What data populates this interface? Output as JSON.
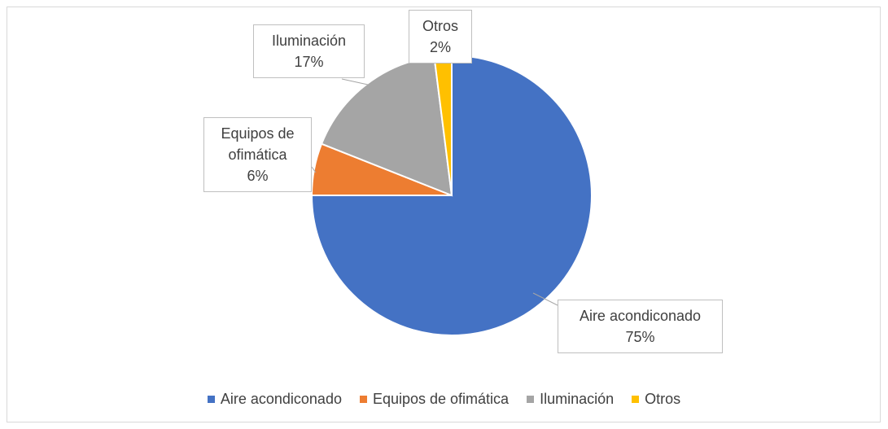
{
  "chart_data": {
    "type": "pie",
    "categories": [
      "Aire acondiconado",
      "Equipos de ofimática",
      "Iluminación",
      "Otros"
    ],
    "values": [
      75,
      6,
      17,
      2
    ],
    "value_labels": [
      "75%",
      "6%",
      "17%",
      "2%"
    ],
    "colors": [
      "#4472c4",
      "#ed7d31",
      "#a5a5a5",
      "#ffc000"
    ],
    "legend": "bottom"
  }
}
